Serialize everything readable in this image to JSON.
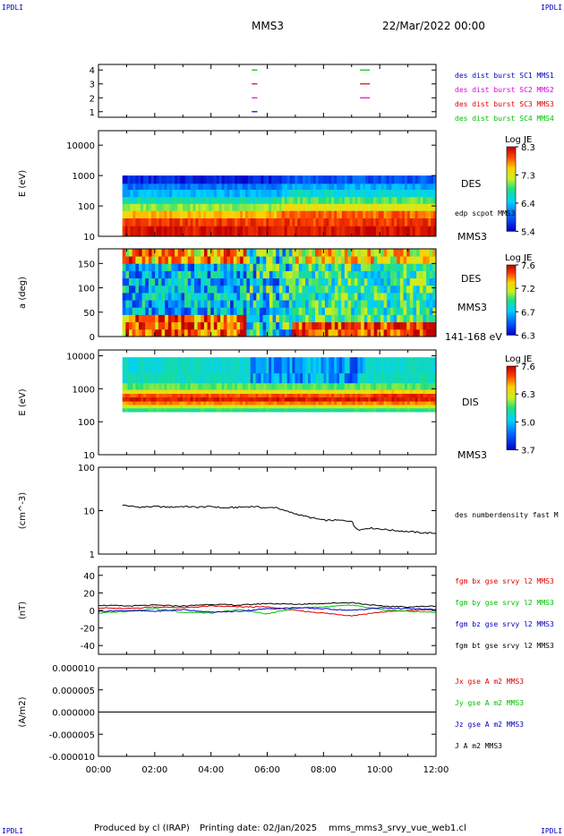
{
  "header": {
    "corner_left_top": "IPDLI",
    "corner_right_top": "IPDLI",
    "corner_left_bottom": "IPDLI",
    "corner_right_bottom": "IPDLI",
    "spacecraft": "MMS3",
    "datetime": "22/Mar/2022 00:00"
  },
  "footer": {
    "produced": "Produced by cl (IRAP)",
    "printing_date": "Printing date: 02/Jan/2025",
    "filename": "mms_mms3_srvy_vue_web1.cl"
  },
  "colors": {
    "red": "#e00000",
    "green": "#00c000",
    "blue": "#0000c0",
    "magenta": "#e000e0",
    "black": "#000000"
  },
  "time_axis": {
    "ticks": [
      "00:00",
      "02:00",
      "04:00",
      "06:00",
      "08:00",
      "10:00",
      "12:00"
    ],
    "range_hours": [
      0,
      12
    ]
  },
  "chart_data": [
    {
      "id": "burst",
      "type": "scatter",
      "ytick_labels": [
        "1",
        "2",
        "3",
        "4"
      ],
      "ylim": [
        0.6,
        4.4
      ],
      "legend": [
        {
          "label": "des dist burst SC1 MMS1",
          "color": "#0000c0"
        },
        {
          "label": "des dist burst SC2 MMS2",
          "color": "#e000e0"
        },
        {
          "label": "des dist burst SC3 MMS3",
          "color": "#e00000"
        },
        {
          "label": "des dist burst SC4 MMS4",
          "color": "#00c000"
        }
      ],
      "segments": [
        {
          "sc": 1,
          "t": [
            5.45,
            5.65
          ],
          "color": "#0000c0"
        },
        {
          "sc": 2,
          "t": [
            5.45,
            5.65
          ],
          "color": "#e000e0"
        },
        {
          "sc": 3,
          "t": [
            5.45,
            5.65
          ],
          "color": "#e00000"
        },
        {
          "sc": 4,
          "t": [
            5.45,
            5.65
          ],
          "color": "#00c000"
        },
        {
          "sc": 2,
          "t": [
            9.3,
            9.65
          ],
          "color": "#e000e0"
        },
        {
          "sc": 3,
          "t": [
            9.3,
            9.65
          ],
          "color": "#e00000"
        },
        {
          "sc": 4,
          "t": [
            9.3,
            9.65
          ],
          "color": "#00c000"
        }
      ]
    },
    {
      "id": "des_energy",
      "type": "heatmap",
      "ylabel": "E (eV)",
      "yscale": "log",
      "ytick_labels": [
        "10",
        "100",
        "1000",
        "10000"
      ],
      "ylim": [
        10,
        30000
      ],
      "right_labels": [
        "DES",
        "edp scpot MMS3",
        "MMS3"
      ],
      "colorbar": {
        "title": "Log JE",
        "ticks": [
          "8.3",
          "7.3",
          "6.4",
          "5.4"
        ],
        "range": [
          5.4,
          8.3
        ]
      },
      "data_span_hours": [
        0.85,
        12
      ],
      "energy_span_eV": [
        10,
        1000
      ],
      "bands": [
        {
          "E": [
            10,
            22
          ],
          "value": 8.2
        },
        {
          "E": [
            22,
            40
          ],
          "value": 8.0
        },
        {
          "E": [
            40,
            70
          ],
          "value": 7.6
        },
        {
          "E": [
            70,
            120
          ],
          "value": 7.1
        },
        {
          "E": [
            120,
            200
          ],
          "value": 6.7
        },
        {
          "E": [
            200,
            350
          ],
          "value": 6.3
        },
        {
          "E": [
            350,
            550
          ],
          "value": 6.0
        },
        {
          "E": [
            550,
            1000
          ],
          "value": 5.6
        }
      ]
    },
    {
      "id": "des_pitch",
      "type": "heatmap",
      "ylabel": "a (deg)",
      "ytick_labels": [
        "0",
        "50",
        "100",
        "150"
      ],
      "ylim": [
        0,
        180
      ],
      "right_labels": [
        "DES",
        "MMS3",
        "141-168 eV"
      ],
      "colorbar": {
        "title": "Log JE",
        "ticks": [
          "7.6",
          "7.2",
          "6.7",
          "6.3"
        ],
        "range": [
          6.3,
          7.6
        ]
      },
      "data_span_hours": [
        0.85,
        12
      ]
    },
    {
      "id": "dis_energy",
      "type": "heatmap",
      "ylabel": "E (eV)",
      "yscale": "log",
      "ytick_labels": [
        "10",
        "100",
        "1000",
        "10000"
      ],
      "ylim": [
        10,
        15000
      ],
      "right_labels": [
        "DIS",
        "MMS3"
      ],
      "colorbar": {
        "title": "Log JE",
        "ticks": [
          "7.6",
          "6.3",
          "5.0",
          "3.7"
        ],
        "range": [
          3.7,
          7.6
        ]
      },
      "data_span_hours": [
        0.85,
        12
      ],
      "energy_span_eV": [
        200,
        9000
      ],
      "bands": [
        {
          "E": [
            200,
            260
          ],
          "value": 5.6
        },
        {
          "E": [
            260,
            330
          ],
          "value": 6.2
        },
        {
          "E": [
            330,
            420
          ],
          "value": 6.9
        },
        {
          "E": [
            420,
            560
          ],
          "value": 7.4
        },
        {
          "E": [
            560,
            720
          ],
          "value": 7.1
        },
        {
          "E": [
            720,
            950
          ],
          "value": 6.4
        },
        {
          "E": [
            950,
            1500
          ],
          "value": 5.8
        },
        {
          "E": [
            1500,
            3000
          ],
          "value": 5.4
        },
        {
          "E": [
            3000,
            9000
          ],
          "value": 5.3
        }
      ]
    },
    {
      "id": "density",
      "type": "line",
      "ylabel": "(cm^-3)",
      "yscale": "log",
      "ytick_labels": [
        "1",
        "10",
        "100"
      ],
      "ylim": [
        1,
        100
      ],
      "legend": [
        {
          "label": "des numberdensity fast M",
          "color": "#000000"
        }
      ],
      "x": [
        0.85,
        1.2,
        1.5,
        2.0,
        2.5,
        3.0,
        3.5,
        4.0,
        4.5,
        5.0,
        5.5,
        6.0,
        6.3,
        6.6,
        7.0,
        7.5,
        8.0,
        8.5,
        9.0,
        9.1,
        9.3,
        9.6,
        10.0,
        10.5,
        11.0,
        11.5,
        12.0
      ],
      "values": [
        13.5,
        12.5,
        12.0,
        12.5,
        12.0,
        12.5,
        12.0,
        12.5,
        11.5,
        12.0,
        12.5,
        11.5,
        12.0,
        10.0,
        8.5,
        7.0,
        6.0,
        6.0,
        5.8,
        4.2,
        3.6,
        4.0,
        3.8,
        3.5,
        3.3,
        3.1,
        3.0
      ]
    },
    {
      "id": "fgm",
      "type": "line",
      "ylabel": "(nT)",
      "ytick_labels": [
        "-40",
        "-20",
        "0",
        "20",
        "40"
      ],
      "ylim": [
        -50,
        50
      ],
      "x": [
        0,
        1,
        2,
        3,
        4,
        5,
        6,
        7,
        8,
        9,
        10,
        11,
        12
      ],
      "series": [
        {
          "name": "fgm bx gse srvy l2 MMS3",
          "color": "#e00000",
          "values": [
            3,
            2,
            4,
            3,
            5,
            4,
            4,
            0,
            -3,
            -6,
            -2,
            0,
            1
          ]
        },
        {
          "name": "fgm by gse srvy l2 MMS3",
          "color": "#00c000",
          "values": [
            -3,
            -1,
            2,
            -2,
            -3,
            1,
            -4,
            3,
            4,
            6,
            1,
            -1,
            -2
          ]
        },
        {
          "name": "fgm bz gse srvy l2 MMS3",
          "color": "#0000c0",
          "values": [
            -1,
            0,
            -1,
            1,
            -2,
            -1,
            2,
            3,
            2,
            0,
            3,
            2,
            1
          ]
        },
        {
          "name": "fgm bt gse srvy l2 MMS3",
          "color": "#000000",
          "values": [
            6,
            5,
            6,
            5,
            7,
            6,
            8,
            7,
            8,
            9,
            5,
            4,
            5
          ]
        }
      ]
    },
    {
      "id": "current",
      "type": "line",
      "ylabel": "(A/m2)",
      "ytick_labels": [
        "-0.000010",
        "-0.000005",
        "0.000000",
        "0.000005",
        "0.000010"
      ],
      "ylim": [
        -1e-05,
        1e-05
      ],
      "x": [
        0,
        12
      ],
      "series": [
        {
          "name": "Jx gse A m2 MMS3",
          "color": "#e00000",
          "values": [
            0,
            0
          ]
        },
        {
          "name": "Jy gse A m2 MMS3",
          "color": "#00c000",
          "values": [
            0,
            0
          ]
        },
        {
          "name": "Jz gse A m2 MMS3",
          "color": "#0000c0",
          "values": [
            0,
            0
          ]
        },
        {
          "name": "J A m2 MMS3",
          "color": "#000000",
          "values": [
            0,
            0
          ]
        }
      ]
    }
  ]
}
